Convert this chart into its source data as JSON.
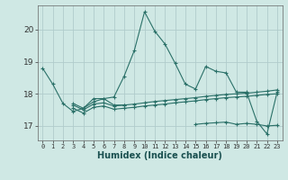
{
  "background_color": "#cfe8e4",
  "grid_color": "#b0cccc",
  "line_color": "#2a7068",
  "marker": "+",
  "markersize": 3,
  "linewidth": 0.8,
  "xlabel": "Humidex (Indice chaleur)",
  "xlabel_fontsize": 7,
  "yticks": [
    17,
    18,
    19,
    20
  ],
  "xtick_labels": [
    "0",
    "1",
    "2",
    "3",
    "4",
    "5",
    "6",
    "7",
    "8",
    "9",
    "10",
    "11",
    "12",
    "13",
    "14",
    "15",
    "16",
    "17",
    "18",
    "19",
    "20",
    "21",
    "22",
    "23"
  ],
  "xlim": [
    -0.5,
    23.5
  ],
  "ylim": [
    16.55,
    20.75
  ],
  "series": [
    [
      18.8,
      18.3,
      17.7,
      17.45,
      17.55,
      17.85,
      17.85,
      17.9,
      18.55,
      19.35,
      20.55,
      19.95,
      19.55,
      18.95,
      18.3,
      18.15,
      18.85,
      18.7,
      18.65,
      18.05,
      18.05,
      17.15,
      16.75,
      18.05
    ],
    [
      null,
      null,
      null,
      17.7,
      17.55,
      17.75,
      17.85,
      17.65,
      17.65,
      null,
      null,
      null,
      null,
      null,
      null,
      null,
      null,
      null,
      null,
      null,
      null,
      null,
      null,
      null
    ],
    [
      null,
      null,
      null,
      17.65,
      17.5,
      17.68,
      17.72,
      17.62,
      17.65,
      17.68,
      17.72,
      17.76,
      17.79,
      17.82,
      17.85,
      17.88,
      17.92,
      17.95,
      17.98,
      18.0,
      18.02,
      18.05,
      18.08,
      18.12
    ],
    [
      null,
      null,
      null,
      17.55,
      17.4,
      17.58,
      17.62,
      17.52,
      17.55,
      17.58,
      17.62,
      17.65,
      17.68,
      17.72,
      17.75,
      17.78,
      17.82,
      17.85,
      17.88,
      17.9,
      17.92,
      17.95,
      17.98,
      18.0
    ],
    [
      null,
      null,
      null,
      null,
      null,
      null,
      null,
      null,
      null,
      null,
      null,
      null,
      null,
      null,
      null,
      17.05,
      17.08,
      17.1,
      17.12,
      17.05,
      17.08,
      17.05,
      17.0,
      17.02
    ]
  ]
}
